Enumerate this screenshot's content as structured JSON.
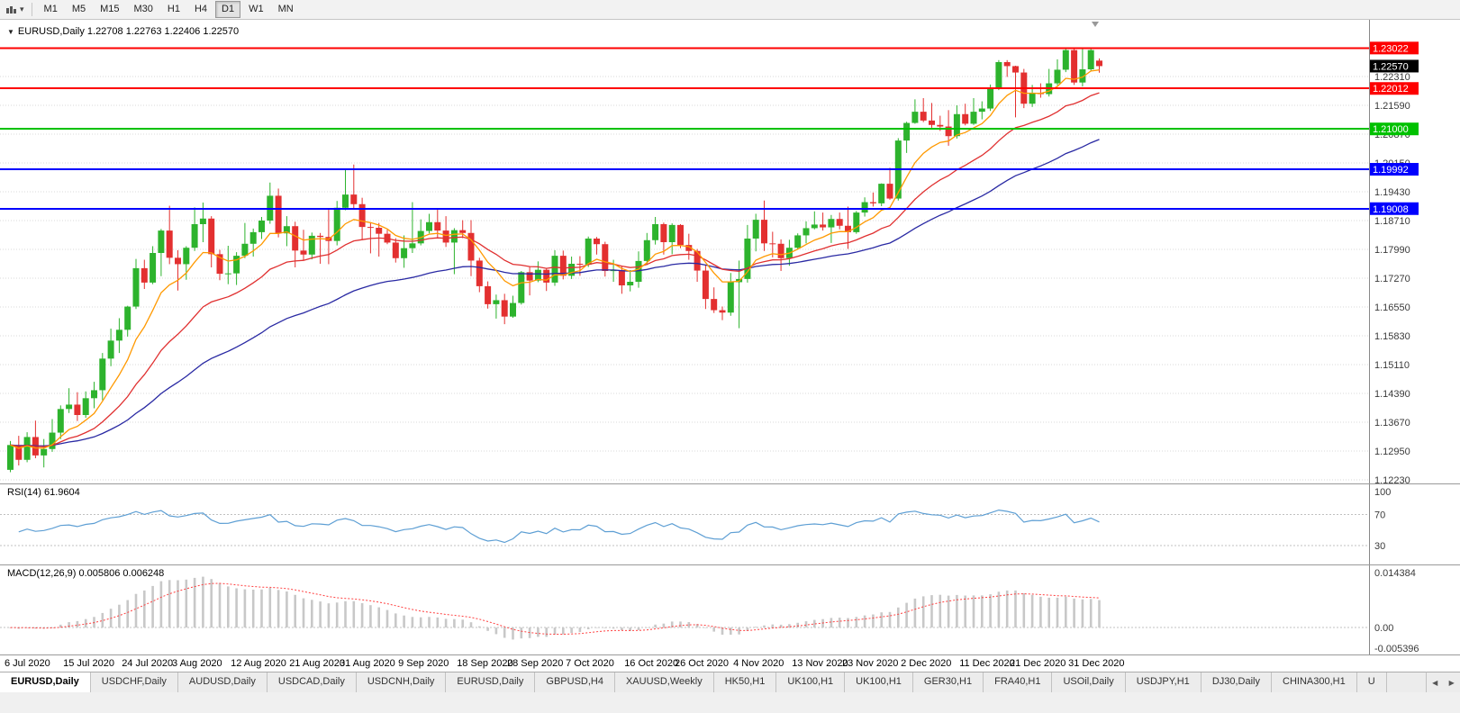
{
  "toolbar": {
    "timeframes": [
      "M1",
      "M5",
      "M15",
      "M30",
      "H1",
      "H4",
      "D1",
      "W1",
      "MN"
    ],
    "selected": "D1"
  },
  "chart": {
    "title": "EURUSD,Daily",
    "ohlc": "1.22708 1.22763 1.22406 1.22570"
  },
  "chart_data": {
    "type": "candlestick",
    "symbol": "EURUSD",
    "timeframe": "Daily",
    "ohlc_display": {
      "open": "1.22708",
      "high": "1.22763",
      "low": "1.22406",
      "close": "1.22570"
    },
    "current_price": "1.22570",
    "price_ticks": [
      "1.22310",
      "1.21590",
      "1.20870",
      "1.20150",
      "1.19430",
      "1.18710",
      "1.17990",
      "1.17270",
      "1.16550",
      "1.15830",
      "1.15110",
      "1.14390",
      "1.13670",
      "1.12950",
      "1.12230"
    ],
    "hlines": [
      {
        "price": 1.23022,
        "label": "1.23022",
        "color": "#fe0000"
      },
      {
        "price": 1.22012,
        "label": "1.22012",
        "color": "#fe0000"
      },
      {
        "price": 1.21,
        "label": "1.21000",
        "color": "#00c100"
      },
      {
        "price": 1.19992,
        "label": "1.19992",
        "color": "#0000fe"
      },
      {
        "price": 1.19008,
        "label": "1.19008",
        "color": "#0000fe"
      }
    ],
    "x_ticks": [
      {
        "i": 0,
        "t": "6 Jul 2020"
      },
      {
        "i": 7,
        "t": "15 Jul 2020"
      },
      {
        "i": 14,
        "t": "24 Jul 2020"
      },
      {
        "i": 20,
        "t": "3 Aug 2020"
      },
      {
        "i": 27,
        "t": "12 Aug 2020"
      },
      {
        "i": 34,
        "t": "21 Aug 2020"
      },
      {
        "i": 40,
        "t": "31 Aug 2020"
      },
      {
        "i": 47,
        "t": "9 Sep 2020"
      },
      {
        "i": 54,
        "t": "18 Sep 2020"
      },
      {
        "i": 60,
        "t": "28 Sep 2020"
      },
      {
        "i": 67,
        "t": "7 Oct 2020"
      },
      {
        "i": 74,
        "t": "16 Oct 2020"
      },
      {
        "i": 80,
        "t": "26 Oct 2020"
      },
      {
        "i": 87,
        "t": "4 Nov 2020"
      },
      {
        "i": 94,
        "t": "13 Nov 2020"
      },
      {
        "i": 100,
        "t": "23 Nov 2020"
      },
      {
        "i": 107,
        "t": "2 Dec 2020"
      },
      {
        "i": 114,
        "t": "11 Dec 2020"
      },
      {
        "i": 120,
        "t": "21 Dec 2020"
      },
      {
        "i": 127,
        "t": "31 Dec 2020"
      }
    ],
    "candles": [
      [
        1.1248,
        1.132,
        1.1242,
        1.131
      ],
      [
        1.131,
        1.1333,
        1.1259,
        1.1273
      ],
      [
        1.1273,
        1.1342,
        1.1267,
        1.133
      ],
      [
        1.133,
        1.1371,
        1.1277,
        1.1284
      ],
      [
        1.1284,
        1.1325,
        1.1254,
        1.13
      ],
      [
        1.13,
        1.1375,
        1.1293,
        1.1341
      ],
      [
        1.1341,
        1.1409,
        1.1325,
        1.14
      ],
      [
        1.14,
        1.1452,
        1.139,
        1.1411
      ],
      [
        1.1411,
        1.1442,
        1.137,
        1.1385
      ],
      [
        1.1385,
        1.1444,
        1.1378,
        1.1427
      ],
      [
        1.1427,
        1.1468,
        1.1402,
        1.1447
      ],
      [
        1.1447,
        1.154,
        1.1422,
        1.1526
      ],
      [
        1.1526,
        1.1601,
        1.1507,
        1.1571
      ],
      [
        1.1571,
        1.1627,
        1.154,
        1.1598
      ],
      [
        1.1598,
        1.1658,
        1.1581,
        1.1656
      ],
      [
        1.1656,
        1.1775,
        1.165,
        1.1752
      ],
      [
        1.1752,
        1.1773,
        1.17,
        1.1716
      ],
      [
        1.1716,
        1.1807,
        1.1712,
        1.179
      ],
      [
        1.179,
        1.185,
        1.1732,
        1.1846
      ],
      [
        1.1846,
        1.1908,
        1.1762,
        1.1778
      ],
      [
        1.1778,
        1.1797,
        1.1696,
        1.1762
      ],
      [
        1.1762,
        1.1807,
        1.1723,
        1.1803
      ],
      [
        1.1803,
        1.1904,
        1.1795,
        1.1862
      ],
      [
        1.1862,
        1.1916,
        1.1817,
        1.1876
      ],
      [
        1.1876,
        1.1882,
        1.1754,
        1.1787
      ],
      [
        1.1787,
        1.1798,
        1.1722,
        1.1738
      ],
      [
        1.1738,
        1.1808,
        1.1712,
        1.1739
      ],
      [
        1.1739,
        1.1792,
        1.171,
        1.1783
      ],
      [
        1.1783,
        1.1865,
        1.1777,
        1.1813
      ],
      [
        1.1813,
        1.1851,
        1.1781,
        1.1842
      ],
      [
        1.1842,
        1.188,
        1.1825,
        1.1871
      ],
      [
        1.1871,
        1.1966,
        1.1863,
        1.1933
      ],
      [
        1.1933,
        1.1951,
        1.1829,
        1.1839
      ],
      [
        1.1839,
        1.1882,
        1.1807,
        1.1857
      ],
      [
        1.1857,
        1.1868,
        1.1754,
        1.1796
      ],
      [
        1.1796,
        1.1848,
        1.1772,
        1.1786
      ],
      [
        1.1786,
        1.1841,
        1.1774,
        1.1833
      ],
      [
        1.1833,
        1.184,
        1.1763,
        1.183
      ],
      [
        1.183,
        1.1899,
        1.1762,
        1.182
      ],
      [
        1.182,
        1.192,
        1.1809,
        1.1903
      ],
      [
        1.1903,
        1.1997,
        1.1897,
        1.1936
      ],
      [
        1.1936,
        1.2011,
        1.1901,
        1.1912
      ],
      [
        1.1912,
        1.1928,
        1.1822,
        1.1855
      ],
      [
        1.1855,
        1.1865,
        1.1789,
        1.1853
      ],
      [
        1.1853,
        1.1865,
        1.1781,
        1.1838
      ],
      [
        1.1838,
        1.1848,
        1.1812,
        1.1816
      ],
      [
        1.1816,
        1.1827,
        1.1766,
        1.1777
      ],
      [
        1.1777,
        1.1834,
        1.1753,
        1.1802
      ],
      [
        1.1802,
        1.1917,
        1.179,
        1.1814
      ],
      [
        1.1814,
        1.1874,
        1.1809,
        1.1845
      ],
      [
        1.1845,
        1.1888,
        1.1839,
        1.1867
      ],
      [
        1.1867,
        1.19,
        1.1829,
        1.1846
      ],
      [
        1.1846,
        1.1882,
        1.1805,
        1.1816
      ],
      [
        1.1816,
        1.1852,
        1.1737,
        1.1847
      ],
      [
        1.1847,
        1.1872,
        1.1827,
        1.184
      ],
      [
        1.184,
        1.1872,
        1.1732,
        1.1771
      ],
      [
        1.1771,
        1.1778,
        1.1692,
        1.1707
      ],
      [
        1.1707,
        1.1719,
        1.1651,
        1.1662
      ],
      [
        1.1662,
        1.1686,
        1.1626,
        1.1672
      ],
      [
        1.1672,
        1.1688,
        1.1612,
        1.1631
      ],
      [
        1.1631,
        1.1683,
        1.1628,
        1.1665
      ],
      [
        1.1665,
        1.1745,
        1.1661,
        1.1742
      ],
      [
        1.1742,
        1.1755,
        1.1684,
        1.1721
      ],
      [
        1.1721,
        1.1769,
        1.1717,
        1.1748
      ],
      [
        1.1748,
        1.1752,
        1.1695,
        1.1716
      ],
      [
        1.1716,
        1.1797,
        1.1708,
        1.1783
      ],
      [
        1.1783,
        1.1796,
        1.1724,
        1.1733
      ],
      [
        1.1733,
        1.1781,
        1.1725,
        1.1763
      ],
      [
        1.1763,
        1.1782,
        1.1733,
        1.1761
      ],
      [
        1.1761,
        1.1831,
        1.1755,
        1.1826
      ],
      [
        1.1826,
        1.183,
        1.1786,
        1.1812
      ],
      [
        1.1812,
        1.1818,
        1.1731,
        1.1745
      ],
      [
        1.1745,
        1.1773,
        1.1718,
        1.1747
      ],
      [
        1.1747,
        1.1758,
        1.1688,
        1.1709
      ],
      [
        1.1709,
        1.1747,
        1.1694,
        1.1718
      ],
      [
        1.1718,
        1.1794,
        1.1703,
        1.177
      ],
      [
        1.177,
        1.184,
        1.176,
        1.1822
      ],
      [
        1.1822,
        1.188,
        1.1811,
        1.1862
      ],
      [
        1.1862,
        1.1866,
        1.1786,
        1.1817
      ],
      [
        1.1817,
        1.1864,
        1.1787,
        1.186
      ],
      [
        1.186,
        1.1862,
        1.1802,
        1.181
      ],
      [
        1.181,
        1.1838,
        1.1773,
        1.1795
      ],
      [
        1.1795,
        1.18,
        1.1718,
        1.1746
      ],
      [
        1.1746,
        1.1759,
        1.165,
        1.1675
      ],
      [
        1.1675,
        1.1704,
        1.164,
        1.1647
      ],
      [
        1.1647,
        1.1656,
        1.1622,
        1.1641
      ],
      [
        1.1641,
        1.174,
        1.1633,
        1.1717
      ],
      [
        1.1717,
        1.1771,
        1.1602,
        1.1725
      ],
      [
        1.1725,
        1.186,
        1.1716,
        1.1826
      ],
      [
        1.1826,
        1.1888,
        1.1794,
        1.1873
      ],
      [
        1.1873,
        1.1921,
        1.1795,
        1.1814
      ],
      [
        1.1814,
        1.1843,
        1.1779,
        1.1813
      ],
      [
        1.1813,
        1.1824,
        1.1745,
        1.1777
      ],
      [
        1.1777,
        1.1823,
        1.1758,
        1.1803
      ],
      [
        1.1803,
        1.1839,
        1.1799,
        1.1834
      ],
      [
        1.1834,
        1.1869,
        1.1814,
        1.1852
      ],
      [
        1.1852,
        1.1894,
        1.1849,
        1.1861
      ],
      [
        1.1861,
        1.1891,
        1.1846,
        1.1854
      ],
      [
        1.1854,
        1.1885,
        1.1815,
        1.1875
      ],
      [
        1.1875,
        1.1891,
        1.1849,
        1.1858
      ],
      [
        1.1858,
        1.1906,
        1.18,
        1.1842
      ],
      [
        1.1842,
        1.1895,
        1.1838,
        1.1891
      ],
      [
        1.1891,
        1.1929,
        1.1881,
        1.1917
      ],
      [
        1.1917,
        1.1941,
        1.1906,
        1.1914
      ],
      [
        1.1914,
        1.1964,
        1.1907,
        1.1963
      ],
      [
        1.1963,
        1.2003,
        1.1923,
        1.1926
      ],
      [
        1.1926,
        1.2077,
        1.1921,
        1.2071
      ],
      [
        1.2071,
        1.2118,
        1.204,
        1.2115
      ],
      [
        1.2115,
        1.2174,
        1.2113,
        1.2143
      ],
      [
        1.2143,
        1.2177,
        1.2117,
        1.2121
      ],
      [
        1.2121,
        1.2165,
        1.2103,
        1.211
      ],
      [
        1.211,
        1.2133,
        1.2095,
        1.2106
      ],
      [
        1.2106,
        1.2147,
        1.2058,
        1.2082
      ],
      [
        1.2082,
        1.2159,
        1.2076,
        1.2137
      ],
      [
        1.2137,
        1.2163,
        1.2109,
        1.2113
      ],
      [
        1.2113,
        1.2177,
        1.211,
        1.2143
      ],
      [
        1.2143,
        1.2169,
        1.2124,
        1.2151
      ],
      [
        1.2151,
        1.2211,
        1.2145,
        1.2203
      ],
      [
        1.2203,
        1.2272,
        1.2197,
        1.2267
      ],
      [
        1.2267,
        1.2272,
        1.223,
        1.2257
      ],
      [
        1.2257,
        1.2258,
        1.2129,
        1.2241
      ],
      [
        1.2241,
        1.225,
        1.2152,
        1.2163
      ],
      [
        1.2163,
        1.221,
        1.2155,
        1.219
      ],
      [
        1.219,
        1.2214,
        1.2178,
        1.2187
      ],
      [
        1.2187,
        1.225,
        1.2181,
        1.2214
      ],
      [
        1.2214,
        1.2274,
        1.2209,
        1.2248
      ],
      [
        1.2248,
        1.2303,
        1.2242,
        1.2297
      ],
      [
        1.2297,
        1.2302,
        1.221,
        1.2216
      ],
      [
        1.2216,
        1.2303,
        1.2206,
        1.2249
      ],
      [
        1.2249,
        1.2302,
        1.2244,
        1.2297
      ],
      [
        1.22708,
        1.22763,
        1.22406,
        1.2257
      ]
    ],
    "indicators": {
      "rsi": {
        "label": "RSI(14) 61.9604",
        "period": 14,
        "value": 61.9604,
        "axis_ticks": [
          {
            "v": 100,
            "t": "100"
          },
          {
            "v": 70,
            "t": "70"
          },
          {
            "v": 30,
            "t": "30"
          }
        ],
        "levels": [
          70,
          30
        ]
      },
      "macd": {
        "label": "MACD(12,26,9) 0.005806 0.006248",
        "fast": 12,
        "slow": 26,
        "signal": 9,
        "value": 0.005806,
        "signal_value": 0.006248,
        "axis_ticks": [
          {
            "v": 0.014384,
            "t": "0.014384"
          },
          {
            "v": 0,
            "t": "0.00"
          },
          {
            "v": -0.005396,
            "t": "-0.005396"
          }
        ],
        "max": 0.014384,
        "min": -0.005396
      }
    },
    "colors": {
      "up": "#2db32d",
      "down": "#e33030",
      "ma_fast": "#ff9900",
      "ma_mid": "#e03030",
      "ma_slow": "#2929a3",
      "rsi": "#5e9fd4",
      "macd_hist": "#c8c8c8",
      "macd_signal": "#ff4040",
      "current_price_bg": "#000000"
    }
  },
  "tabs": {
    "active": 0,
    "items": [
      "EURUSD,Daily",
      "USDCHF,Daily",
      "AUDUSD,Daily",
      "USDCAD,Daily",
      "USDCNH,Daily",
      "EURUSD,Daily",
      "GBPUSD,H4",
      "XAUUSD,Weekly",
      "HK50,H1",
      "UK100,H1",
      "UK100,H1",
      "GER30,H1",
      "FRA40,H1",
      "USOil,Daily",
      "USDJPY,H1",
      "DJ30,Daily",
      "CHINA300,H1",
      "U"
    ]
  }
}
